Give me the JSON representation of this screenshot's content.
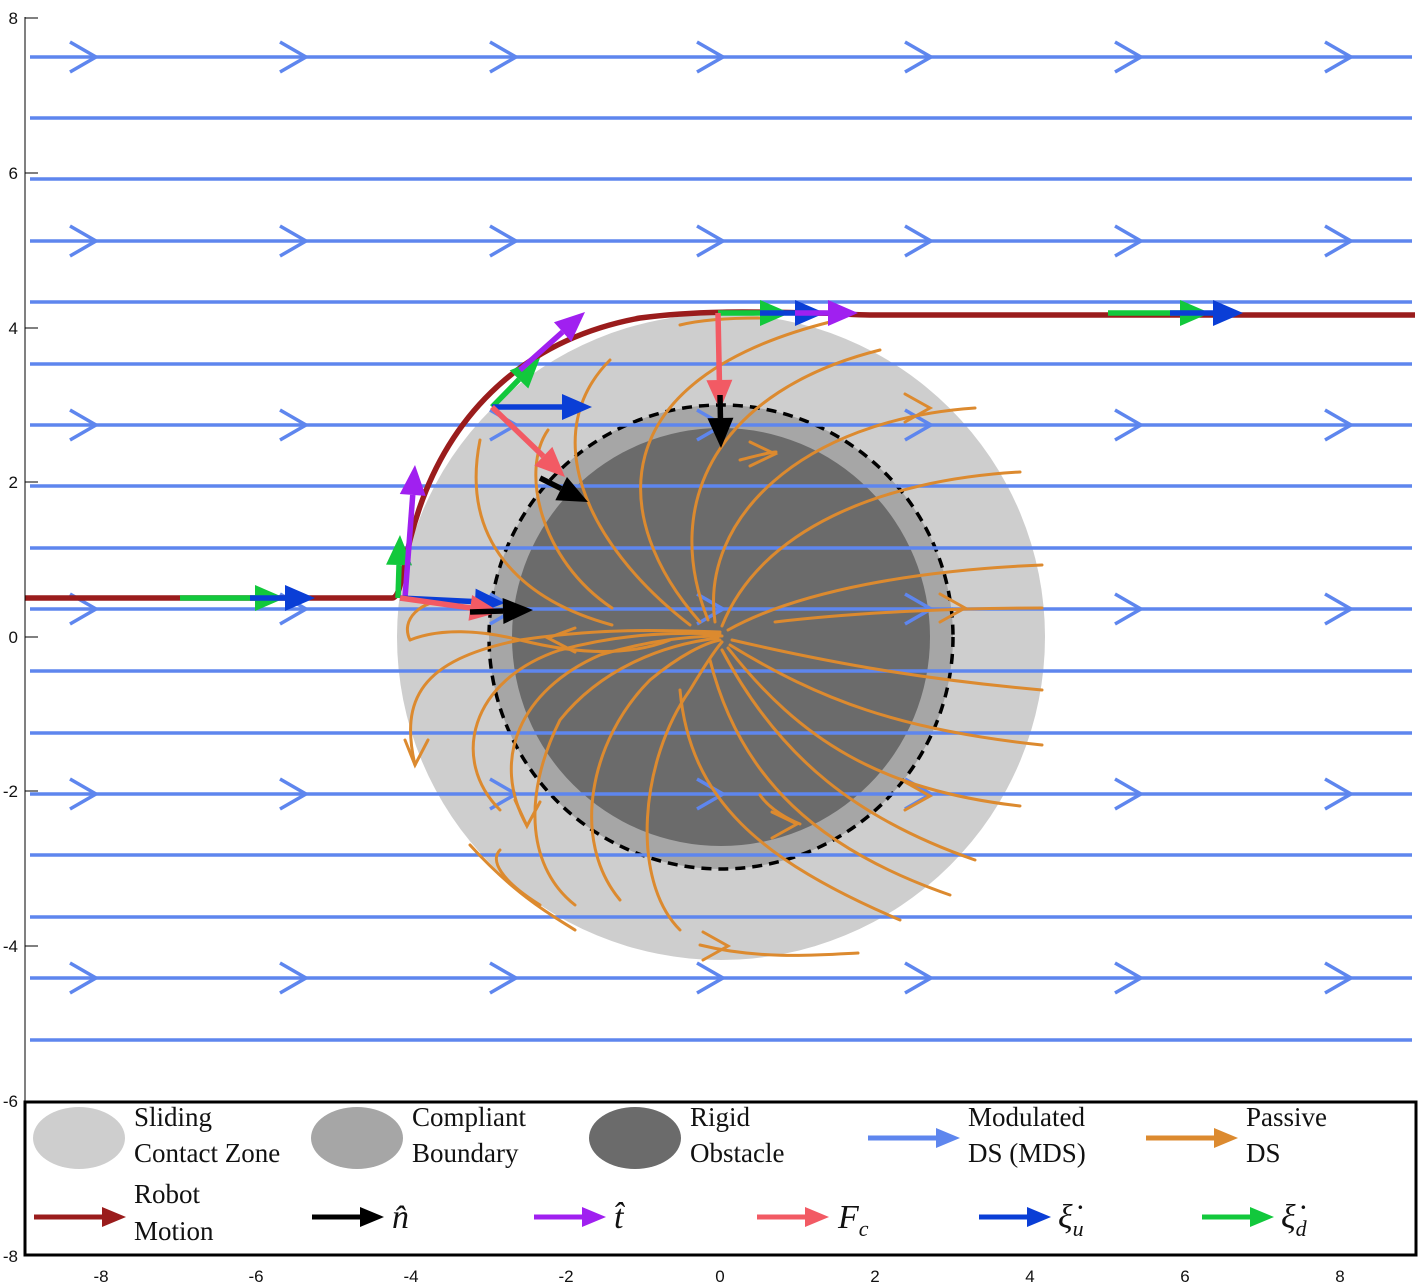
{
  "axes": {
    "x_ticks": [
      "-8",
      "-6",
      "-4",
      "-2",
      "0",
      "2",
      "4",
      "6",
      "8"
    ],
    "y_ticks": [
      "8",
      "6",
      "4",
      "2",
      "0",
      "-2",
      "-4",
      "-6",
      "-8"
    ]
  },
  "colors": {
    "mds": "#5e86ee",
    "passive": "#dc8a2f",
    "robot": "#9a1c1c",
    "normal": "#000000",
    "tangent": "#a020f0",
    "force": "#f25a64",
    "xi_u": "#0a3ed6",
    "xi_d": "#12c83c",
    "sliding_zone": "#cecece",
    "compliant_boundary": "#a6a6a6",
    "rigid_obstacle": "#6b6b6b"
  },
  "legend": {
    "sliding": [
      "Sliding",
      "Contact Zone"
    ],
    "compliant": [
      "Compliant",
      "Boundary"
    ],
    "rigid": [
      "Rigid",
      "Obstacle"
    ],
    "mds": [
      "Modulated",
      "DS (MDS)"
    ],
    "passive": [
      "Passive",
      "DS"
    ],
    "robot": [
      "Robot",
      "Motion"
    ],
    "n_hat": "n̂",
    "t_hat": "t̂",
    "force_base": "F",
    "force_sub": "c",
    "xi_u_base": "ξ̇",
    "xi_u_sub": "u",
    "xi_d_base": "ξ̇",
    "xi_d_sub": "d"
  }
}
